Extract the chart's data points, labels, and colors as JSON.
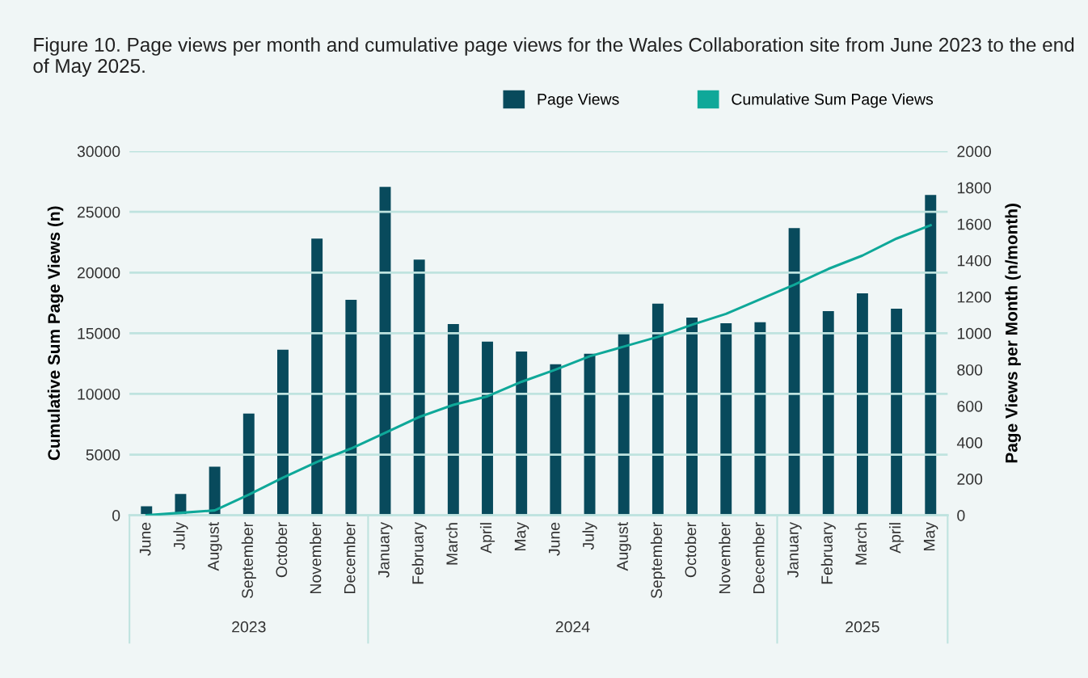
{
  "chart_data": {
    "type": "bar",
    "title": "Figure 10. Page views per month and cumulative page views for the Wales Collaboration site from June 2023 to the end of May 2025.",
    "x": [
      "2023-06",
      "2023-07",
      "2023-08",
      "2023-09",
      "2023-10",
      "2023-11",
      "2023-12",
      "2024-01",
      "2024-02",
      "2024-03",
      "2024-04",
      "2024-05",
      "2024-06",
      "2024-07",
      "2024-08",
      "2024-09",
      "2024-10",
      "2024-11",
      "2024-12",
      "2025-01",
      "2025-02",
      "2025-03",
      "2025-04",
      "2025-05"
    ],
    "xticks": [
      {
        "value": "2023-06",
        "label": "June"
      },
      {
        "value": "2023-07",
        "label": "July"
      },
      {
        "value": "2023-08",
        "label": "August"
      },
      {
        "value": "2023-09",
        "label": "September"
      },
      {
        "value": "2023-10",
        "label": "October"
      },
      {
        "value": "2023-11",
        "label": "November"
      },
      {
        "value": "2023-12",
        "label": "December"
      },
      {
        "value": "2024-01",
        "label": "January"
      },
      {
        "value": "2024-02",
        "label": "February"
      },
      {
        "value": "2024-03",
        "label": "March"
      },
      {
        "value": "2024-04",
        "label": "April"
      },
      {
        "value": "2024-05",
        "label": "May"
      },
      {
        "value": "2024-06",
        "label": "June"
      },
      {
        "value": "2024-07",
        "label": "July"
      },
      {
        "value": "2024-08",
        "label": "August"
      },
      {
        "value": "2024-09",
        "label": "September"
      },
      {
        "value": "2024-10",
        "label": "October"
      },
      {
        "value": "2024-11",
        "label": "November"
      },
      {
        "value": "2024-12",
        "label": "December"
      },
      {
        "value": "2025-01",
        "label": "January"
      },
      {
        "value": "2025-02",
        "label": "February"
      },
      {
        "value": "2025-03",
        "label": "March"
      },
      {
        "value": "2025-04",
        "label": "April"
      },
      {
        "value": "2025-05",
        "label": "May"
      }
    ],
    "xlim": [
      "2023-05-16",
      "2025-05-16"
    ],
    "annotations": [
      "2023",
      "2024",
      "2025"
    ],
    "ylabel": "Cumulative Sum Page Views (n)",
    "y2label": "Page Views per Month (n/month)",
    "ylim": [
      0,
      30000
    ],
    "yticks": [
      0,
      5000,
      10000,
      15000,
      20000,
      25000,
      30000
    ],
    "y2lim": [
      0,
      2000
    ],
    "y2ticks": [
      0,
      200,
      400,
      600,
      800,
      1000,
      1200,
      1400,
      1600,
      1800,
      2000
    ],
    "grid": "y",
    "legend": "top",
    "marker": "none",
    "line_style": "solid",
    "series": [
      {
        "name": "Page Views",
        "axis": "y2",
        "color": "#084a5c",
        "values": [
          50,
          117,
          267,
          559,
          909,
          1520,
          1184,
          1804,
          1405,
          1051,
          954,
          900,
          830,
          887,
          998,
          1162,
          1086,
          1055,
          1060,
          1578,
          1122,
          1219,
          1135,
          1760
        ]
      },
      {
        "name": "Cumulative Sum Page Views",
        "type": "line",
        "axis": "y",
        "color": "#0fa899",
        "values": [
          0,
          200,
          400,
          1700,
          3100,
          4400,
          5500,
          6800,
          8100,
          9100,
          9800,
          11000,
          12000,
          13100,
          13900,
          14700,
          15700,
          16600,
          17800,
          19000,
          20300,
          21400,
          22800,
          23900
        ]
      }
    ]
  }
}
